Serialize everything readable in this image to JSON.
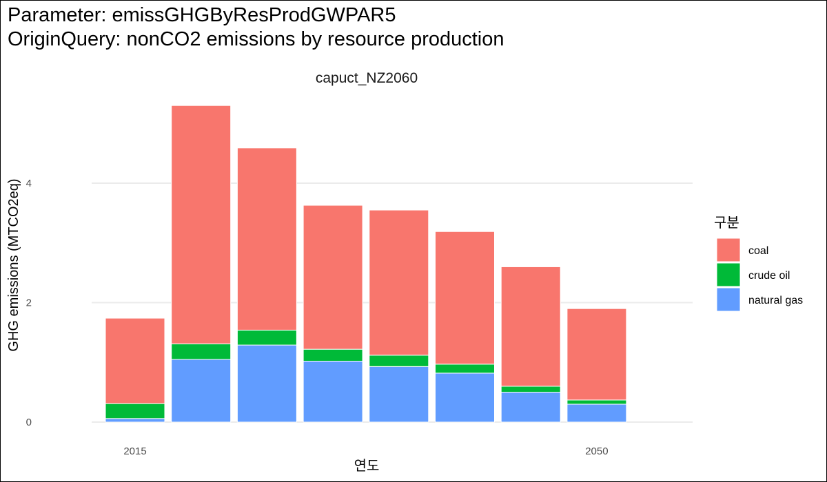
{
  "title_line1": "Parameter: emissGHGByResProdGWPAR5",
  "title_line2": "OriginQuery: nonCO2 emissions by resource production",
  "chart_data": {
    "type": "bar",
    "stacked": true,
    "facet": "capuct_NZ2060",
    "xlabel": "연도",
    "ylabel": "GHG emissions (MTCO2eq)",
    "x": [
      2015,
      2020,
      2025,
      2030,
      2035,
      2040,
      2045,
      2050
    ],
    "x_tick_labels": [
      "2015",
      "2050"
    ],
    "x_ticks": [
      2015,
      2050
    ],
    "y_ticks": [
      0,
      2,
      4
    ],
    "ylim": [
      0,
      5.5
    ],
    "grid": true,
    "legend_title": "구분",
    "legend_position": "right",
    "series": [
      {
        "name": "natural gas",
        "color": "#619CFF",
        "values": [
          0.06,
          1.05,
          1.29,
          1.02,
          0.93,
          0.82,
          0.5,
          0.3
        ]
      },
      {
        "name": "crude oil",
        "color": "#00BA38",
        "values": [
          0.25,
          0.26,
          0.25,
          0.2,
          0.19,
          0.15,
          0.1,
          0.07
        ]
      },
      {
        "name": "coal",
        "color": "#F8766D",
        "values": [
          1.43,
          3.99,
          3.05,
          2.41,
          2.43,
          2.22,
          2.0,
          1.53
        ]
      }
    ]
  }
}
